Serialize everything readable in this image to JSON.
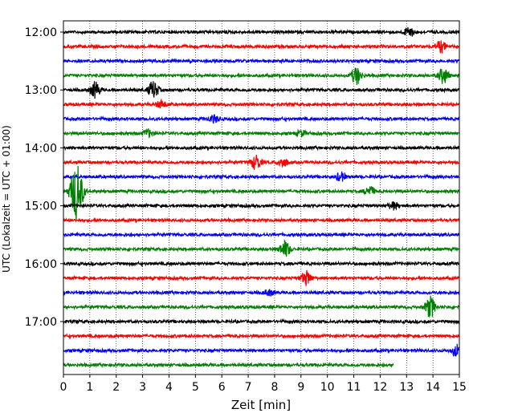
{
  "chart_data": {
    "type": "line",
    "title": "",
    "xlabel": "Zeit  [min]",
    "ylabel": "UTC (Lokalzeit = UTC + 01:00)",
    "xlim": [
      0,
      15
    ],
    "x_ticks": [
      0,
      1,
      2,
      3,
      4,
      5,
      6,
      7,
      8,
      9,
      10,
      11,
      12,
      13,
      14,
      15
    ],
    "x_tick_labels": [
      "0",
      "1",
      "2",
      "3",
      "4",
      "5",
      "6",
      "7",
      "8",
      "9",
      "10",
      "11",
      "12",
      "13",
      "14",
      "15"
    ],
    "y_tick_labels": [
      "12:00",
      "13:00",
      "14:00",
      "15:00",
      "16:00",
      "17:00"
    ],
    "y_ticks_row": [
      0,
      4,
      8,
      12,
      16,
      20
    ],
    "grid": "vertical dotted lines at each minute",
    "trace_minutes": 15,
    "row_colors": [
      "#000000",
      "#ff0000",
      "#0000ff",
      "#008000"
    ],
    "traces": [
      {
        "start": "12:00",
        "end_minute": 15,
        "events": [
          {
            "t": 13.1,
            "amp": 0.35
          }
        ]
      },
      {
        "start": "12:15",
        "end_minute": 15,
        "events": [
          {
            "t": 14.3,
            "amp": 0.4
          }
        ]
      },
      {
        "start": "12:30",
        "end_minute": 15,
        "events": []
      },
      {
        "start": "12:45",
        "end_minute": 15,
        "events": [
          {
            "t": 11.1,
            "amp": 0.6
          },
          {
            "t": 14.4,
            "amp": 0.55
          }
        ]
      },
      {
        "start": "13:00",
        "end_minute": 15,
        "events": [
          {
            "t": 1.2,
            "amp": 0.55
          },
          {
            "t": 3.4,
            "amp": 0.6
          }
        ]
      },
      {
        "start": "13:15",
        "end_minute": 15,
        "events": [
          {
            "t": 3.7,
            "amp": 0.25
          }
        ]
      },
      {
        "start": "13:30",
        "end_minute": 15,
        "events": [
          {
            "t": 5.7,
            "amp": 0.25
          }
        ]
      },
      {
        "start": "13:45",
        "end_minute": 15,
        "events": [
          {
            "t": 3.2,
            "amp": 0.25
          },
          {
            "t": 9.0,
            "amp": 0.2
          }
        ]
      },
      {
        "start": "14:00",
        "end_minute": 15,
        "events": []
      },
      {
        "start": "14:15",
        "end_minute": 15,
        "events": [
          {
            "t": 7.3,
            "amp": 0.5
          },
          {
            "t": 8.3,
            "amp": 0.3
          }
        ]
      },
      {
        "start": "14:30",
        "end_minute": 15,
        "events": [
          {
            "t": 10.5,
            "amp": 0.3
          }
        ]
      },
      {
        "start": "14:45",
        "end_minute": 15,
        "events": [
          {
            "t": 0.5,
            "amp": 2.0
          },
          {
            "t": 11.6,
            "amp": 0.35
          }
        ]
      },
      {
        "start": "15:00",
        "end_minute": 15,
        "events": [
          {
            "t": 12.5,
            "amp": 0.25
          }
        ]
      },
      {
        "start": "15:15",
        "end_minute": 15,
        "events": []
      },
      {
        "start": "15:30",
        "end_minute": 15,
        "events": []
      },
      {
        "start": "15:45",
        "end_minute": 15,
        "events": [
          {
            "t": 8.4,
            "amp": 0.55
          }
        ]
      },
      {
        "start": "16:00",
        "end_minute": 15,
        "events": []
      },
      {
        "start": "16:15",
        "end_minute": 15,
        "events": [
          {
            "t": 9.2,
            "amp": 0.5
          }
        ]
      },
      {
        "start": "16:30",
        "end_minute": 15,
        "events": [
          {
            "t": 7.8,
            "amp": 0.2
          }
        ]
      },
      {
        "start": "16:45",
        "end_minute": 15,
        "events": [
          {
            "t": 13.9,
            "amp": 0.7
          }
        ]
      },
      {
        "start": "17:00",
        "end_minute": 15,
        "events": []
      },
      {
        "start": "17:15",
        "end_minute": 15,
        "events": []
      },
      {
        "start": "17:30",
        "end_minute": 15,
        "events": [
          {
            "t": 14.9,
            "amp": 0.4
          }
        ]
      },
      {
        "start": "17:45",
        "end_minute": 12.5,
        "events": []
      }
    ]
  }
}
